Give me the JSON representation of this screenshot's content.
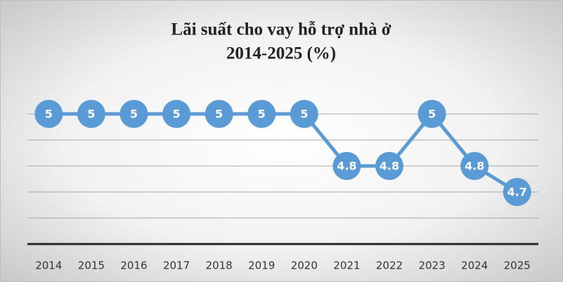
{
  "chart_data": {
    "type": "line",
    "title": [
      "Lãi suất cho vay hỗ trợ nhà ở",
      "2014-2025 (%)"
    ],
    "categories": [
      "2014",
      "2015",
      "2016",
      "2017",
      "2018",
      "2019",
      "2020",
      "2021",
      "2022",
      "2023",
      "2024",
      "2025"
    ],
    "values": [
      5,
      5,
      5,
      5,
      5,
      5,
      5,
      4.8,
      4.8,
      5,
      4.8,
      4.7
    ],
    "color": "#5b9bd5",
    "ylim": [
      4.5,
      5.0
    ],
    "yticks": [
      4.6,
      4.7,
      4.8,
      4.9,
      5.0
    ],
    "grid": true
  }
}
